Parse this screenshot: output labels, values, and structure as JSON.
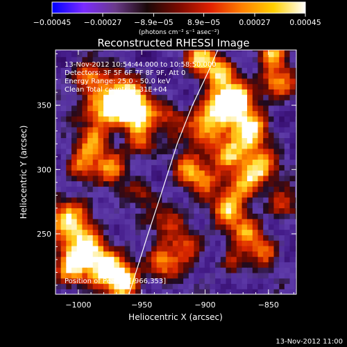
{
  "chart_data": {
    "type": "heatmap",
    "title": "Reconstructed RHESSI Image",
    "xlabel": "Heliocentric X (arcsec)",
    "ylabel": "Heliocentric Y (arcsec)",
    "xlim": [
      -1018,
      -828
    ],
    "ylim": [
      203,
      393
    ],
    "xticks": [
      -1000,
      -950,
      -900,
      -850
    ],
    "xtick_labels": [
      "−1000",
      "−950",
      "−900",
      "−850"
    ],
    "yticks": [
      250,
      300,
      350
    ],
    "ytick_labels": [
      "250",
      "300",
      "350"
    ],
    "colorbar": {
      "range": [
        -0.00045,
        0.00045
      ],
      "ticks": [
        -0.00045,
        -0.00027,
        -8.9e-05,
        8.9e-05,
        0.00027,
        0.00045
      ],
      "tick_labels": [
        "−0.00045",
        "−0.00027",
        "−8.9e−05",
        "8.9e−05",
        "0.00027",
        "0.00045"
      ],
      "unit_label": "(photons cm⁻² s⁻¹ asec⁻²)",
      "colors": [
        "#0000ff",
        "#7a2bff",
        "#6a3a8a",
        "#1a0808",
        "#7a0a00",
        "#e02000",
        "#ff8000",
        "#ffd000",
        "#ffffff"
      ]
    },
    "info_lines": [
      "13-Nov-2012 10:54:44.000 to 10:58:50.000",
      "Detectors: 3F 5F 6F 7F 8F 9F, Att 0",
      "Energy Range: 25.0 - 50.0 keV",
      "Clean     Total counts: 1.31E+04"
    ],
    "peak_label": "Position of Peak = [-966,353]",
    "peak": [
      -966,
      353
    ],
    "limb_arc": [
      [
        -960,
        203
      ],
      [
        -945,
        250
      ],
      [
        -935,
        280
      ],
      [
        -922,
        320
      ],
      [
        -910,
        350
      ],
      [
        -898,
        375
      ],
      [
        -890,
        393
      ]
    ],
    "timestamp": "13-Nov-2012 11:00"
  }
}
